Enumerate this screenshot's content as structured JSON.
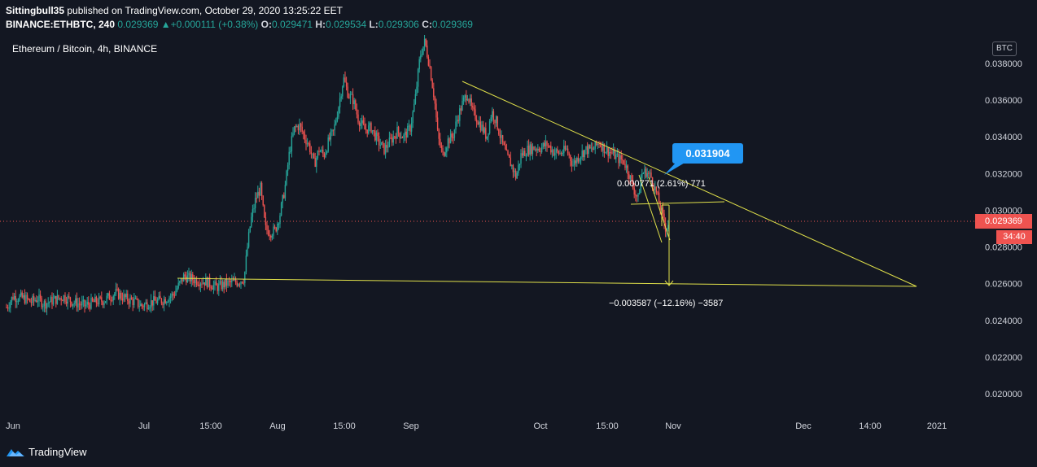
{
  "header": {
    "line1_user": "Sittingbull35",
    "line1_rest": "published on TradingView.com, October 29, 2020 13:25:22 EET",
    "symbol": "BINANCE:ETHBTC, 240",
    "last": "0.029369",
    "change": "+0.000111 (+0.38%)",
    "o_label": "O:",
    "o_value": "0.029471",
    "h_label": "H:",
    "h_value": "0.029534",
    "l_label": "L:",
    "l_value": "0.029306",
    "c_label": "C:",
    "c_value": "0.029369"
  },
  "chart_title": "Ethereum / Bitcoin, 4h, BINANCE",
  "currency_badge": "BTC",
  "price_tag": "0.029369",
  "time_tag": "34:40",
  "callout": "0.031904",
  "measure_upper": "0.000771 (2.61%) 771",
  "measure_lower": "−0.003587 (−12.16%) −3587",
  "branding": "TradingView",
  "colors": {
    "background": "#131722",
    "up": "#26a69a",
    "down": "#ef5350",
    "drawing": "#e0e04a",
    "callout": "#2196f3"
  },
  "chart_data": {
    "type": "candlestick",
    "symbol": "ETHBTC",
    "y_axis_ticks": [
      "0.038000",
      "0.036000",
      "0.034000",
      "0.032000",
      "0.030000",
      "0.028000",
      "0.026000",
      "0.024000",
      "0.022000",
      "0.020000"
    ],
    "x_axis_ticks": [
      "Jun",
      "Jul",
      "15:00",
      "Aug",
      "15:00",
      "Sep",
      "Oct",
      "15:00",
      "Nov",
      "Dec",
      "14:00",
      "2021"
    ],
    "ylim": [
      0.0193,
      0.0394
    ],
    "close_path": [
      [
        0,
        0.0247
      ],
      [
        8,
        0.0253
      ],
      [
        22,
        0.0252
      ],
      [
        30,
        0.025
      ],
      [
        38,
        0.0252
      ],
      [
        46,
        0.0249
      ],
      [
        58,
        0.0251
      ],
      [
        70,
        0.0253
      ],
      [
        82,
        0.025
      ],
      [
        96,
        0.0248
      ],
      [
        108,
        0.025
      ],
      [
        120,
        0.0251
      ],
      [
        134,
        0.0255
      ],
      [
        146,
        0.0252
      ],
      [
        158,
        0.025
      ],
      [
        166,
        0.0248
      ],
      [
        178,
        0.025
      ],
      [
        192,
        0.0251
      ],
      [
        205,
        0.0254
      ],
      [
        218,
        0.0264
      ],
      [
        232,
        0.0262
      ],
      [
        246,
        0.0261
      ],
      [
        258,
        0.0258
      ],
      [
        270,
        0.026
      ],
      [
        284,
        0.0261
      ],
      [
        292,
        0.0263
      ],
      [
        296,
        0.028
      ],
      [
        300,
        0.0294
      ],
      [
        306,
        0.0306
      ],
      [
        312,
        0.0312
      ],
      [
        318,
        0.029
      ],
      [
        324,
        0.0288
      ],
      [
        330,
        0.0289
      ],
      [
        336,
        0.0298
      ],
      [
        342,
        0.0312
      ],
      [
        348,
        0.0333
      ],
      [
        354,
        0.0345
      ],
      [
        360,
        0.0346
      ],
      [
        366,
        0.034
      ],
      [
        372,
        0.0335
      ],
      [
        378,
        0.0325
      ],
      [
        384,
        0.0333
      ],
      [
        390,
        0.033
      ],
      [
        396,
        0.0338
      ],
      [
        402,
        0.0343
      ],
      [
        408,
        0.0357
      ],
      [
        414,
        0.0372
      ],
      [
        420,
        0.0363
      ],
      [
        426,
        0.036
      ],
      [
        432,
        0.035
      ],
      [
        440,
        0.0344
      ],
      [
        448,
        0.0345
      ],
      [
        456,
        0.0338
      ],
      [
        464,
        0.0333
      ],
      [
        472,
        0.0338
      ],
      [
        480,
        0.0343
      ],
      [
        488,
        0.034
      ],
      [
        496,
        0.0345
      ],
      [
        502,
        0.036
      ],
      [
        508,
        0.0384
      ],
      [
        514,
        0.0392
      ],
      [
        520,
        0.0378
      ],
      [
        526,
        0.036
      ],
      [
        530,
        0.034
      ],
      [
        536,
        0.033
      ],
      [
        542,
        0.0338
      ],
      [
        548,
        0.034
      ],
      [
        554,
        0.035
      ],
      [
        560,
        0.0358
      ],
      [
        566,
        0.0364
      ],
      [
        572,
        0.0354
      ],
      [
        578,
        0.035
      ],
      [
        584,
        0.0345
      ],
      [
        590,
        0.034
      ],
      [
        596,
        0.0354
      ],
      [
        602,
        0.0348
      ],
      [
        608,
        0.0338
      ],
      [
        614,
        0.033
      ],
      [
        620,
        0.0325
      ],
      [
        626,
        0.0318
      ],
      [
        632,
        0.033
      ],
      [
        640,
        0.0333
      ],
      [
        648,
        0.0334
      ],
      [
        656,
        0.0334
      ],
      [
        664,
        0.0336
      ],
      [
        672,
        0.0332
      ],
      [
        680,
        0.0331
      ],
      [
        688,
        0.0333
      ],
      [
        696,
        0.0325
      ],
      [
        704,
        0.033
      ],
      [
        712,
        0.0333
      ],
      [
        720,
        0.0333
      ],
      [
        728,
        0.0337
      ],
      [
        736,
        0.0333
      ],
      [
        744,
        0.0331
      ],
      [
        752,
        0.0328
      ],
      [
        758,
        0.0327
      ],
      [
        764,
        0.0321
      ],
      [
        770,
        0.0312
      ],
      [
        776,
        0.0306
      ],
      [
        780,
        0.032
      ],
      [
        786,
        0.0321
      ],
      [
        792,
        0.0318
      ],
      [
        798,
        0.031
      ],
      [
        804,
        0.03
      ],
      [
        810,
        0.029
      ],
      [
        814,
        0.0294
      ]
    ]
  }
}
